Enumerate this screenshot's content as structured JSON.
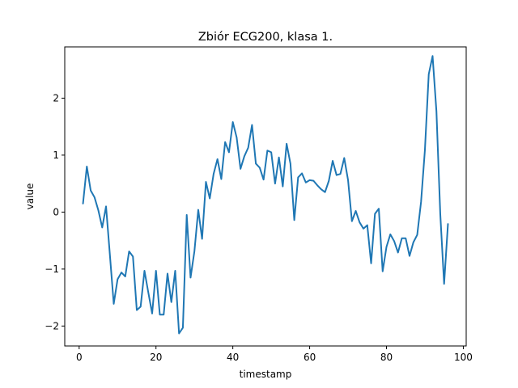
{
  "chart_data": {
    "type": "line",
    "title": "Zbiór ECG200, klasa 1.",
    "xlabel": "timestamp",
    "ylabel": "value",
    "xlim": [
      -3.75,
      100.75
    ],
    "ylim": [
      -2.35,
      2.9
    ],
    "xticks": [
      0,
      20,
      40,
      60,
      80,
      100
    ],
    "yticks": [
      -2,
      -1,
      0,
      1,
      2
    ],
    "grid": false,
    "line_color": "#1f77b4",
    "series": [
      {
        "x": [
          1,
          2,
          3,
          4,
          5,
          6,
          7,
          8,
          9,
          10,
          11,
          12,
          13,
          14,
          15,
          16,
          17,
          18,
          19,
          20,
          21,
          22,
          23,
          24,
          25,
          26,
          27,
          28,
          29,
          30,
          31,
          32,
          33,
          34,
          35,
          36,
          37,
          38,
          39,
          40,
          41,
          42,
          43,
          44,
          45,
          46,
          47,
          48,
          49,
          50,
          51,
          52,
          53,
          54,
          55,
          56,
          57,
          58,
          59,
          60,
          61,
          62,
          63,
          64,
          65,
          66,
          67,
          68,
          69,
          70,
          71,
          72,
          73,
          74,
          75,
          76,
          77,
          78,
          79,
          80,
          81,
          82,
          83,
          84,
          85,
          86,
          87,
          88,
          89,
          90,
          91,
          92,
          93,
          94,
          95,
          96
        ],
        "y": [
          0.15,
          0.8,
          0.38,
          0.26,
          0.03,
          -0.27,
          0.1,
          -0.75,
          -1.61,
          -1.18,
          -1.06,
          -1.13,
          -0.69,
          -0.78,
          -1.72,
          -1.66,
          -1.03,
          -1.41,
          -1.78,
          -1.03,
          -1.8,
          -1.8,
          -1.08,
          -1.58,
          -1.03,
          -2.13,
          -2.03,
          -0.05,
          -1.15,
          -0.69,
          0.04,
          -0.47,
          0.53,
          0.24,
          0.67,
          0.93,
          0.58,
          1.23,
          1.05,
          1.58,
          1.31,
          0.76,
          0.98,
          1.13,
          1.53,
          0.85,
          0.78,
          0.57,
          1.08,
          1.05,
          0.5,
          0.96,
          0.45,
          1.2,
          0.85,
          -0.14,
          0.61,
          0.68,
          0.52,
          0.56,
          0.55,
          0.47,
          0.4,
          0.35,
          0.55,
          0.9,
          0.65,
          0.67,
          0.95,
          0.56,
          -0.16,
          0.02,
          -0.18,
          -0.29,
          -0.23,
          -0.9,
          -0.03,
          0.06,
          -1.04,
          -0.61,
          -0.39,
          -0.51,
          -0.71,
          -0.46,
          -0.46,
          -0.77,
          -0.53,
          -0.4,
          0.18,
          1.09,
          2.42,
          2.74,
          1.77,
          -0.03,
          -1.26,
          -0.21
        ]
      }
    ]
  }
}
